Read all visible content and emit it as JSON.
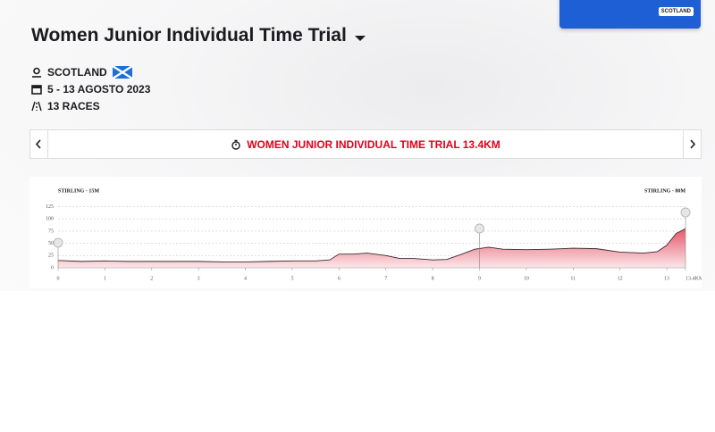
{
  "header": {
    "title": "Women Junior Individual Time Trial",
    "badge": "SCOTLAND",
    "location": "SCOTLAND",
    "dates": "5 - 13 AGOSTO 2023",
    "races": "13 RACES"
  },
  "nav": {
    "stage": "WOMEN JUNIOR INDIVIDUAL TIME TRIAL 13.4KM"
  },
  "chart_data": {
    "type": "area",
    "start_label": "STIRLING - 15M",
    "end_label": "STIRLING - 80M",
    "x": [
      0,
      0.5,
      1,
      1.5,
      2,
      2.5,
      3,
      3.5,
      4,
      4.5,
      5,
      5.5,
      5.8,
      6,
      6.3,
      6.6,
      7,
      7.3,
      7.6,
      8,
      8.3,
      8.6,
      8.9,
      9.2,
      9.5,
      10,
      10.5,
      11,
      11.5,
      12,
      12.5,
      12.8,
      13,
      13.2,
      13.4
    ],
    "values": [
      15,
      13,
      14,
      13,
      13,
      13,
      13,
      12,
      12,
      13,
      14,
      14,
      16,
      28,
      28,
      30,
      25,
      19,
      19,
      16,
      17,
      27,
      38,
      42,
      38,
      37,
      38,
      40,
      39,
      32,
      30,
      33,
      46,
      70,
      80
    ],
    "color": "#e8707e",
    "xlim": [
      0,
      13.4
    ],
    "ylim": [
      0,
      135
    ],
    "xticks": [
      0,
      1,
      2,
      3,
      4,
      5,
      6,
      7,
      8,
      9,
      10,
      11,
      12,
      13,
      {
        "value": 13.4,
        "label": "13.4KM"
      }
    ],
    "yticks": [
      0,
      25,
      50,
      75,
      100,
      125
    ],
    "grid": true
  }
}
